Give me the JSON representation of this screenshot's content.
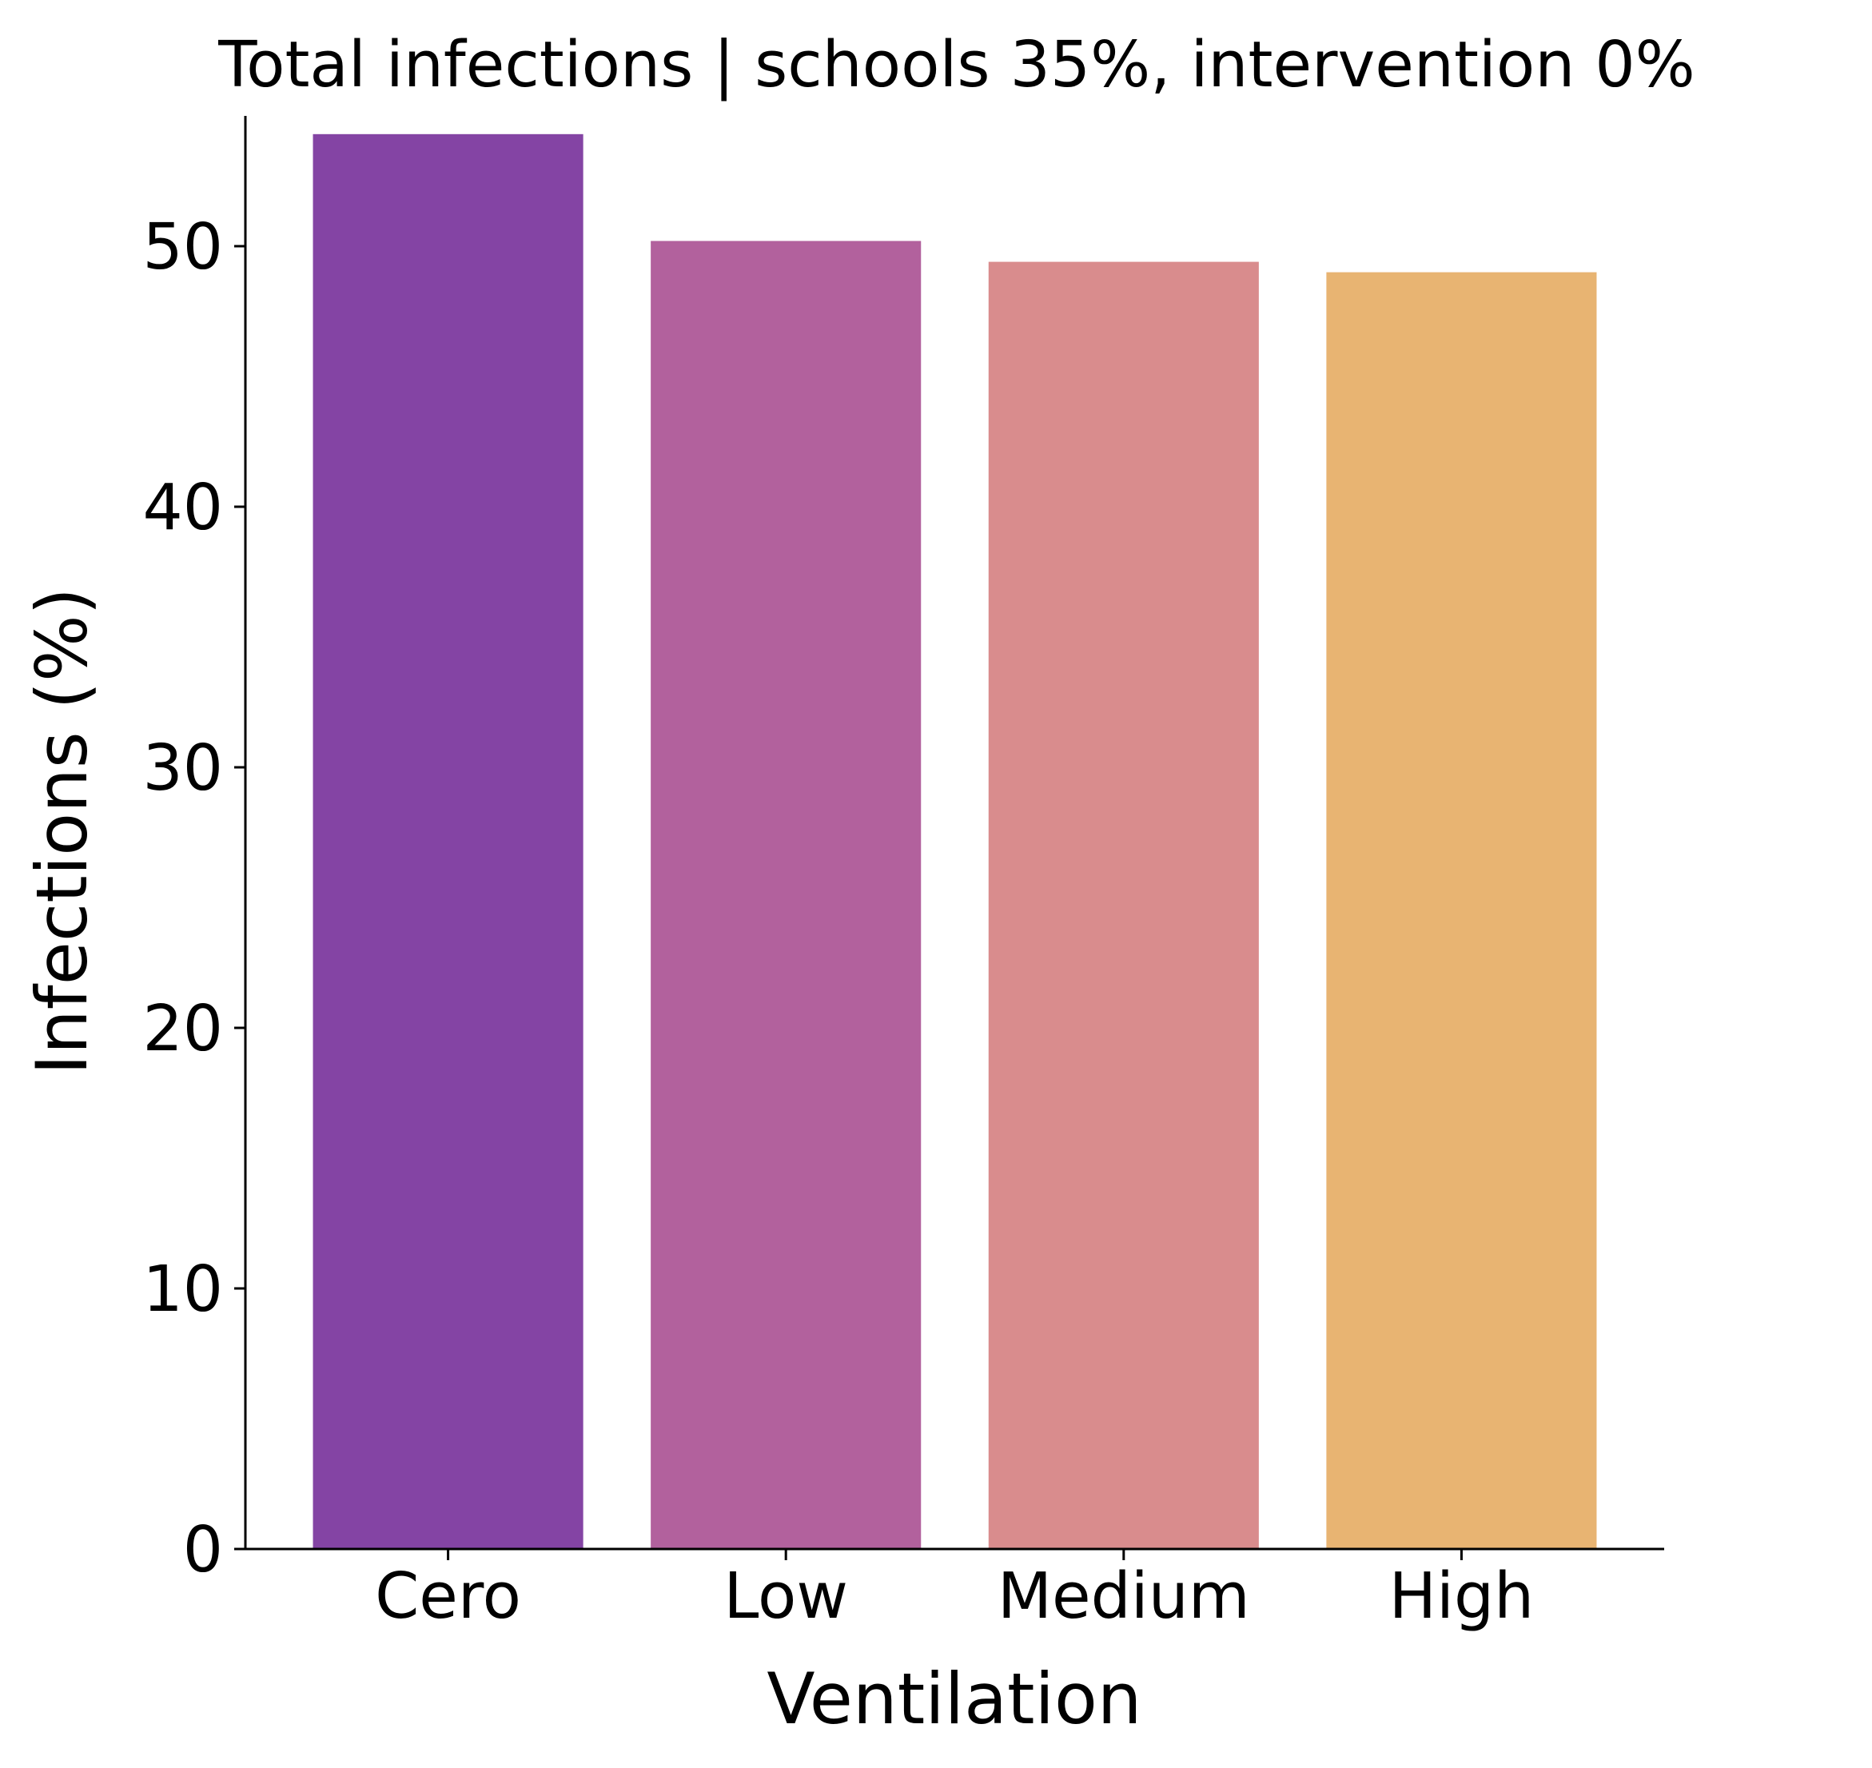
{
  "chart_data": {
    "type": "bar",
    "title": "Total infections | schools 35%, intervention 0%",
    "xlabel": "Ventilation",
    "ylabel": "Infections (%)",
    "categories": [
      "Cero",
      "Low",
      "Medium",
      "High"
    ],
    "values": [
      54.3,
      50.2,
      49.4,
      49.0
    ],
    "colors": [
      "#8444a4",
      "#b2619d",
      "#d98c8d",
      "#e8b472"
    ],
    "ylim": [
      0,
      55
    ],
    "yticks": [
      0,
      10,
      20,
      30,
      40,
      50
    ],
    "grid": false,
    "legend": "none"
  }
}
